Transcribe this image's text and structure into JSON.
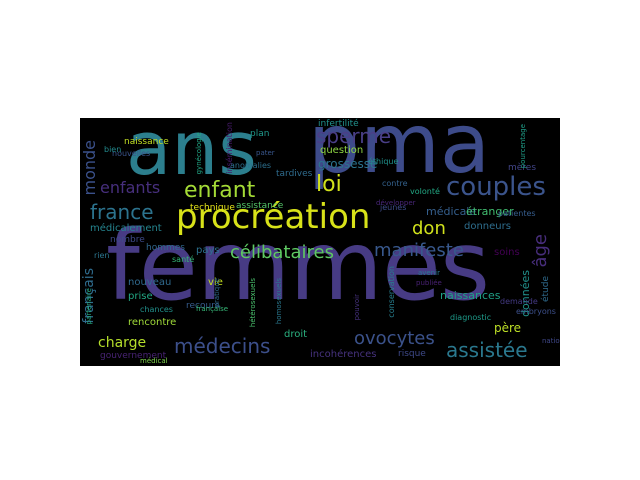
{
  "cloud": {
    "background": "#000000",
    "words": [
      {
        "text": "ans",
        "color": "#2c7f8e"
      },
      {
        "text": "pma",
        "color": "#3d4b8a"
      },
      {
        "text": "femmes",
        "color": "#473b84"
      },
      {
        "text": "procréation",
        "color": "#d8e219"
      },
      {
        "text": "couples",
        "color": "#3b548c"
      },
      {
        "text": "enfant",
        "color": "#a4db36"
      },
      {
        "text": "loi",
        "color": "#d2e21b"
      },
      {
        "text": "sperme",
        "color": "#4a3f88"
      },
      {
        "text": "france",
        "color": "#2c738e"
      },
      {
        "text": "manifeste",
        "color": "#38588c"
      },
      {
        "text": "célibataires",
        "color": "#5ec962"
      },
      {
        "text": "médecins",
        "color": "#3c4f8a"
      },
      {
        "text": "ovocytes",
        "color": "#3b528b"
      },
      {
        "text": "assistée",
        "color": "#2a788e"
      },
      {
        "text": "don",
        "color": "#d0e11c"
      },
      {
        "text": "enfants",
        "color": "#472f7d"
      },
      {
        "text": "charge",
        "color": "#b5de2b"
      },
      {
        "text": "français",
        "color": "#2f6c8e"
      },
      {
        "text": "monde",
        "color": "#3b518b"
      },
      {
        "text": "âge",
        "color": "#472d7b"
      },
      {
        "text": "grossesse",
        "color": "#2c738e"
      },
      {
        "text": "question",
        "color": "#90d743"
      },
      {
        "text": "médicale",
        "color": "#355f8d"
      },
      {
        "text": "étranger",
        "color": "#42be71"
      },
      {
        "text": "donneurs",
        "color": "#2e6e8e"
      },
      {
        "text": "naissances",
        "color": "#1fa187"
      },
      {
        "text": "données",
        "color": "#21918c"
      },
      {
        "text": "père",
        "color": "#bddf26"
      },
      {
        "text": "droit",
        "color": "#2ab07f"
      },
      {
        "text": "incohérences",
        "color": "#46327e"
      },
      {
        "text": "risque",
        "color": "#3e4989"
      },
      {
        "text": "rencontre",
        "color": "#a0da39"
      },
      {
        "text": "gouvernement",
        "color": "#482374"
      },
      {
        "text": "nouveau",
        "color": "#306a8e"
      },
      {
        "text": "prise",
        "color": "#22a884"
      },
      {
        "text": "recours",
        "color": "#365c8d"
      },
      {
        "text": "pays",
        "color": "#2c718e"
      },
      {
        "text": "vie",
        "color": "#c5e021"
      },
      {
        "text": "hommes",
        "color": "#31688e"
      },
      {
        "text": "santé",
        "color": "#35b779"
      },
      {
        "text": "soins",
        "color": "#440154"
      },
      {
        "text": "assistance",
        "color": "#54c568"
      },
      {
        "text": "technique",
        "color": "#e5e419"
      },
      {
        "text": "médicalement",
        "color": "#25848e"
      },
      {
        "text": "nombre",
        "color": "#3e4a89"
      },
      {
        "text": "rien",
        "color": "#2b758e"
      },
      {
        "text": "infertilité",
        "color": "#21918c"
      },
      {
        "text": "naissance",
        "color": "#c2df23"
      },
      {
        "text": "insémination",
        "color": "#481b6d"
      },
      {
        "text": "plan",
        "color": "#1f988b"
      },
      {
        "text": "éthique",
        "color": "#20928c"
      },
      {
        "text": "tardives",
        "color": "#2f6c8e"
      },
      {
        "text": "contre",
        "color": "#34618d"
      },
      {
        "text": "volonté",
        "color": "#22a884"
      },
      {
        "text": "patientes",
        "color": "#365d8d"
      },
      {
        "text": "mères",
        "color": "#414487"
      },
      {
        "text": "monde",
        "color": "#3b528b"
      },
      {
        "text": "pourcentage",
        "color": "#1f9e89"
      },
      {
        "text": "nouvelles",
        "color": "#3a538b"
      },
      {
        "text": "anomalies",
        "color": "#2d708e"
      },
      {
        "text": "développer",
        "color": "#482677"
      },
      {
        "text": "diagnostic",
        "color": "#1e9b8a"
      },
      {
        "text": "embryons",
        "color": "#3c4f8a"
      },
      {
        "text": "demande",
        "color": "#443a83"
      },
      {
        "text": "étude",
        "color": "#2f6b8e"
      },
      {
        "text": "conservation",
        "color": "#277f8e"
      },
      {
        "text": "publiée",
        "color": "#482173"
      },
      {
        "text": "jeunes",
        "color": "#3e4c8a"
      },
      {
        "text": "chances",
        "color": "#21918c"
      },
      {
        "text": "national",
        "color": "#3f4788"
      },
      {
        "text": "française",
        "color": "#37b878"
      },
      {
        "text": "homosexuels",
        "color": "#2a788e"
      },
      {
        "text": "hétérosexuels",
        "color": "#4ac16d"
      },
      {
        "text": "bien",
        "color": "#238a8d"
      },
      {
        "text": "pouvoir",
        "color": "#46327e"
      },
      {
        "text": "pater",
        "color": "#39568c"
      },
      {
        "text": "avenir",
        "color": "#2a768e"
      },
      {
        "text": "pratique",
        "color": "#2f6b8e"
      },
      {
        "text": "gynécologie",
        "color": "#22a785"
      },
      {
        "text": "partenaire",
        "color": "#25ac82"
      },
      {
        "text": "médical",
        "color": "#7fd34e"
      }
    ]
  }
}
